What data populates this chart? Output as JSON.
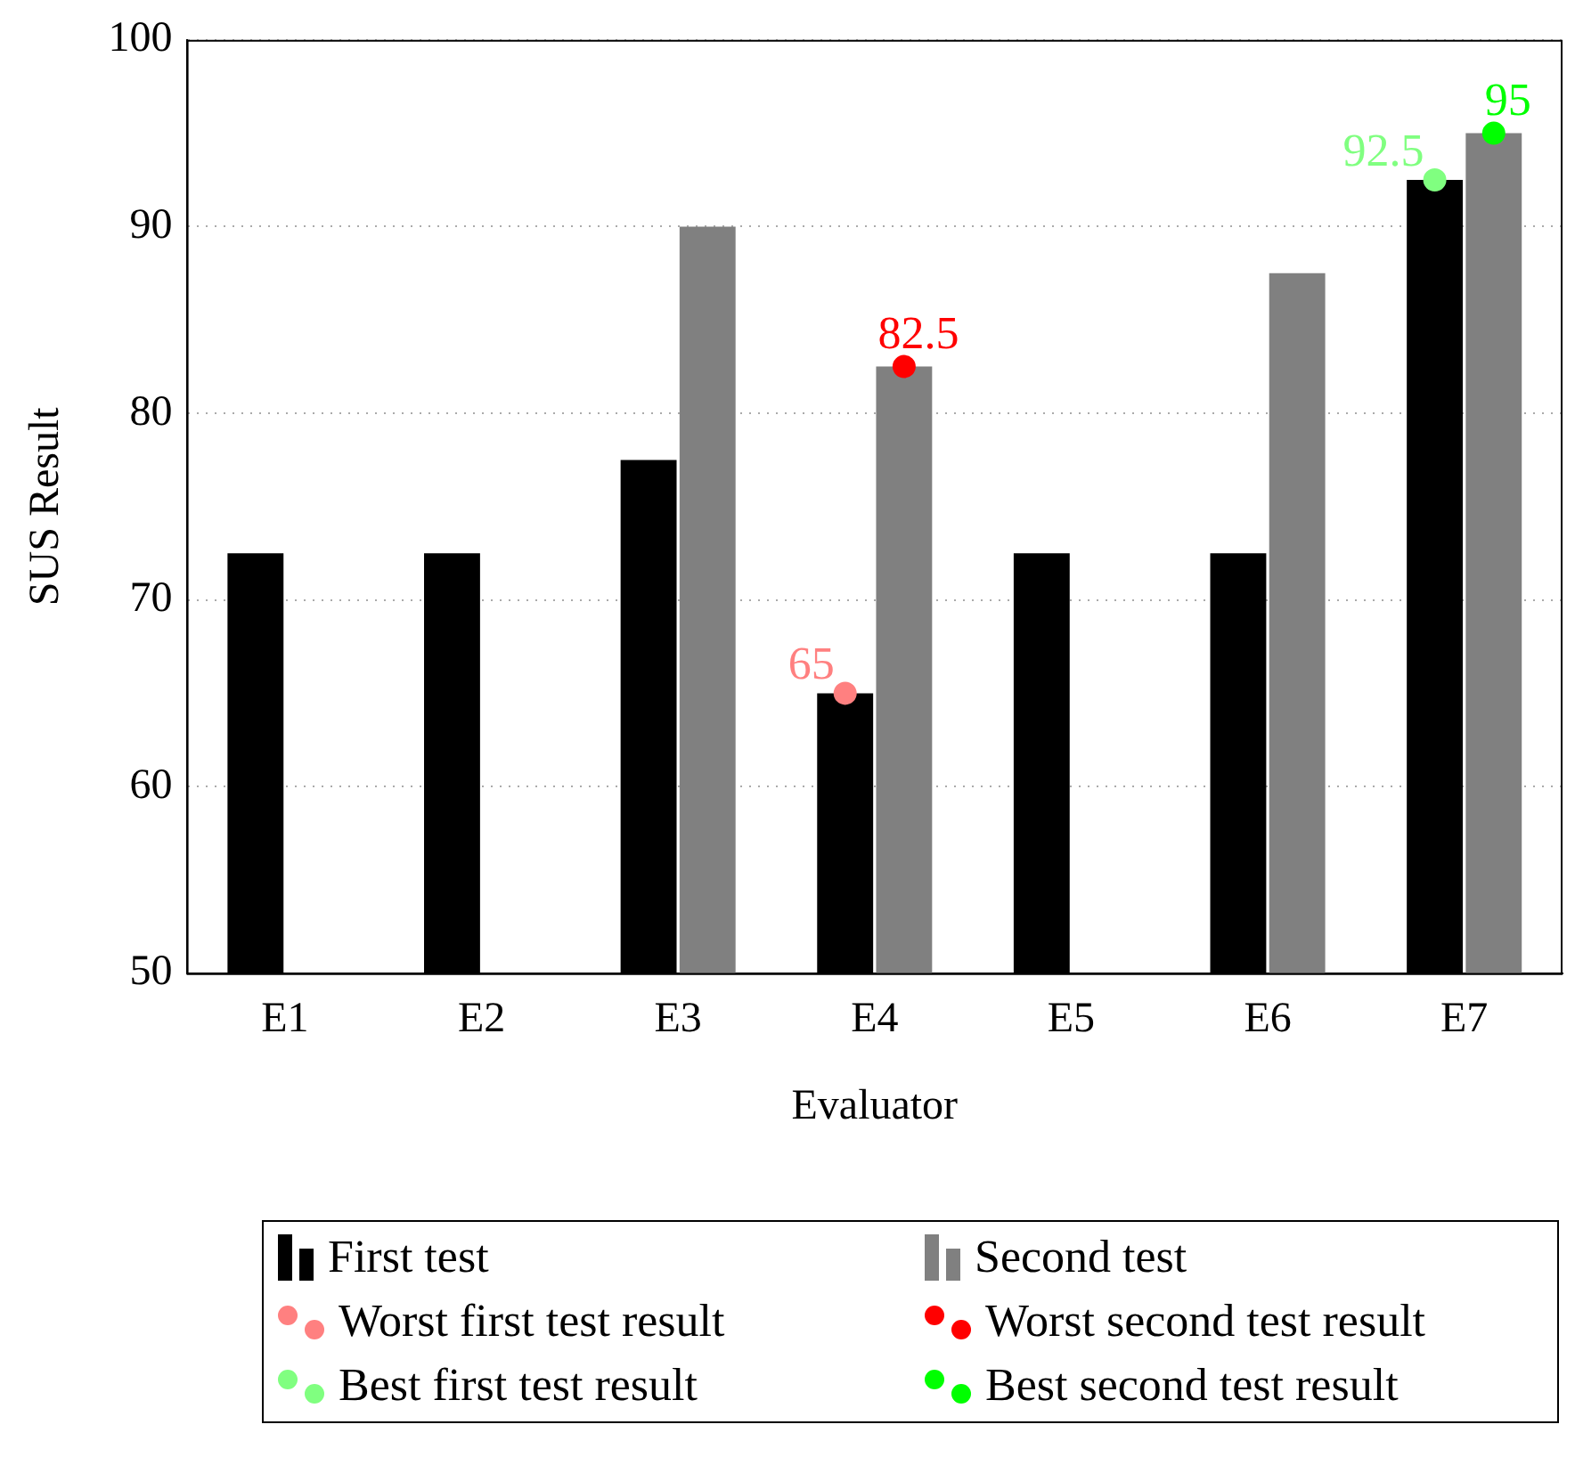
{
  "chart_data": {
    "type": "bar",
    "xlabel": "Evaluator",
    "ylabel": "SUS Result",
    "categories": [
      "E1",
      "E2",
      "E3",
      "E4",
      "E5",
      "E6",
      "E7"
    ],
    "ylim": [
      50,
      100
    ],
    "yticks": [
      50,
      60,
      70,
      80,
      90,
      100
    ],
    "grid": "y",
    "legend": "bottom",
    "series": [
      {
        "name": "First test",
        "color": "#000000",
        "values": [
          72.5,
          72.5,
          77.5,
          65,
          72.5,
          72.5,
          92.5
        ]
      },
      {
        "name": "Second test",
        "color": "#808080",
        "values": [
          null,
          null,
          90,
          82.5,
          null,
          87.5,
          95
        ]
      },
      {
        "name": "Worst first test result",
        "type": "scatter",
        "color": "#ff8080",
        "x": [
          "E4"
        ],
        "values": [
          65
        ],
        "value_labels": [
          "65"
        ]
      },
      {
        "name": "Worst second test result",
        "type": "scatter",
        "color": "#ff0000",
        "x": [
          "E4"
        ],
        "values": [
          82.5
        ],
        "value_labels": [
          "82.5"
        ]
      },
      {
        "name": "Best first test result",
        "type": "scatter",
        "color": "#80ff80",
        "x": [
          "E7"
        ],
        "values": [
          92.5
        ],
        "value_labels": [
          "92.5"
        ]
      },
      {
        "name": "Best second test result",
        "type": "scatter",
        "color": "#00ff00",
        "x": [
          "E7"
        ],
        "values": [
          95
        ],
        "value_labels": [
          "95"
        ]
      }
    ]
  }
}
